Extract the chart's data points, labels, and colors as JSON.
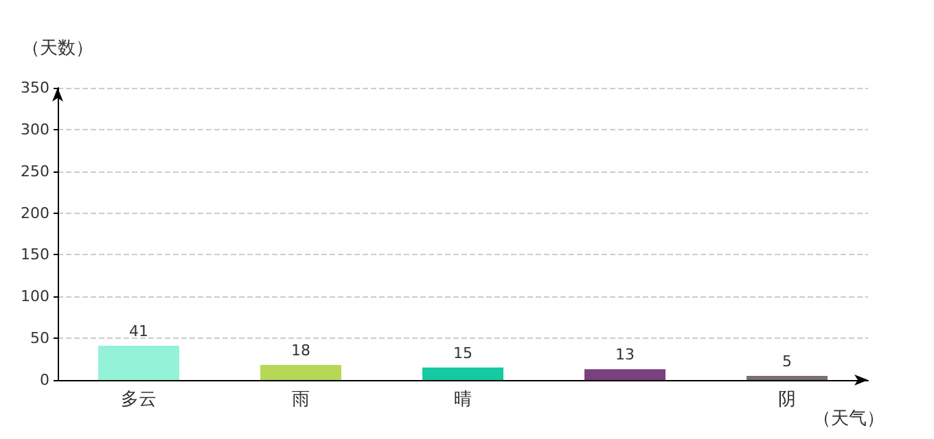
{
  "chart_data": {
    "type": "bar",
    "xlabel": "（天气）",
    "ylabel": "（天数）",
    "categories": [
      "多云",
      "雨",
      "晴",
      null,
      "阴"
    ],
    "values": [
      41,
      18,
      15,
      13,
      5
    ],
    "colors": [
      "#93f2d7",
      "#b5d957",
      "#15c9a0",
      "#7a4180",
      "#7b6f6d"
    ],
    "ylim": [
      0,
      350
    ],
    "yticks": [
      0,
      50,
      100,
      150,
      200,
      250,
      300,
      350
    ],
    "grid": "y",
    "data_labels": true
  }
}
